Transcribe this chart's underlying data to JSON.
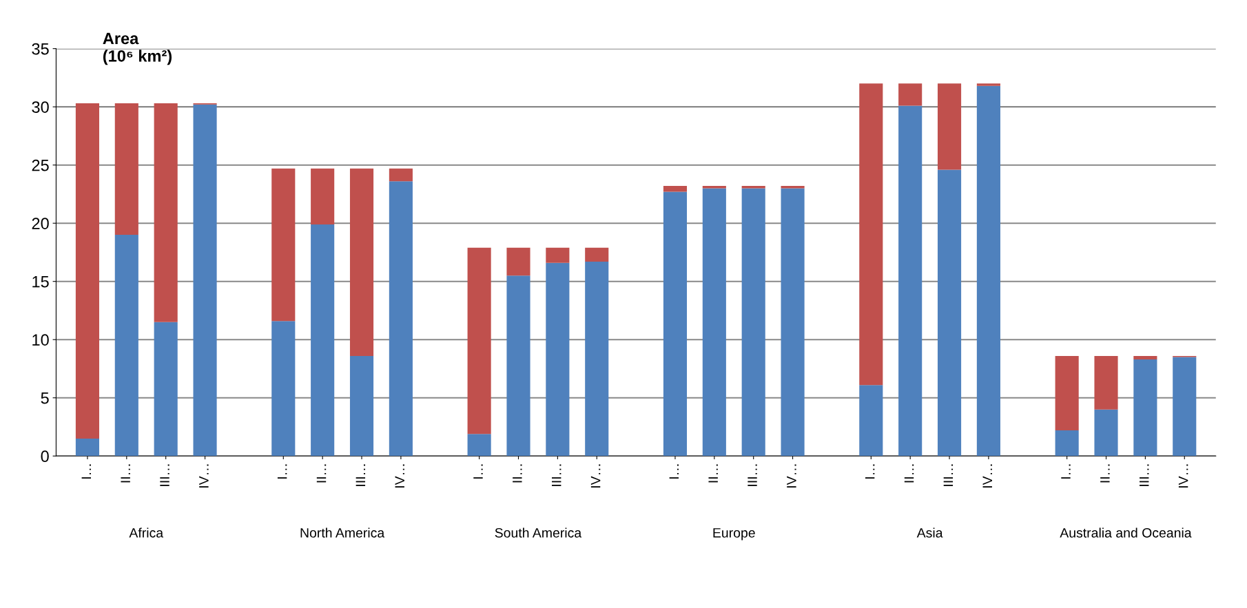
{
  "chart_data": {
    "type": "bar",
    "stacked": true,
    "ylabel": "Area\n(10⁶ km²)",
    "categories": [
      "I…",
      "II…",
      "III…",
      "IV…",
      "I…",
      "II…",
      "III…",
      "IV…",
      "I…",
      "II…",
      "III…",
      "IV…",
      "I…",
      "II…",
      "III…",
      "IV…",
      "I…",
      "II…",
      "III…",
      "IV…",
      "I…",
      "II…",
      "III…",
      "IV…"
    ],
    "annotations": [
      "Africa",
      "North America",
      "South America",
      "Europe",
      "Asia",
      "Australia and Oceania"
    ],
    "series": [
      {
        "color": "#4f81bd",
        "values": [
          1.5,
          19.0,
          11.5,
          30.2,
          11.6,
          19.9,
          8.6,
          23.6,
          1.9,
          15.5,
          16.6,
          16.7,
          22.7,
          23.0,
          23.0,
          23.0,
          6.1,
          30.1,
          24.6,
          31.8,
          2.2,
          4.0,
          8.3,
          8.5
        ]
      },
      {
        "color": "#c0504d",
        "values": [
          28.8,
          11.3,
          18.8,
          0.1,
          13.1,
          4.8,
          16.1,
          1.1,
          16.0,
          2.4,
          1.3,
          1.2,
          0.5,
          0.2,
          0.2,
          0.2,
          25.9,
          1.9,
          7.4,
          0.2,
          6.4,
          4.6,
          0.3,
          0.1
        ]
      }
    ],
    "ylim": [
      0,
      35
    ],
    "yticks": [
      0,
      5,
      10,
      15,
      20,
      25,
      30,
      35
    ],
    "grid": "y"
  }
}
